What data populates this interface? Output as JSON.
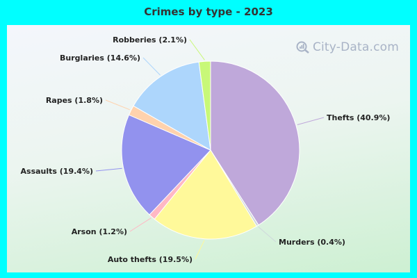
{
  "title": "Crimes by type - 2023",
  "watermark": "City-Data.com",
  "colors": {
    "background": "#00ffff",
    "title": "#333333"
  },
  "chart_data": {
    "type": "pie",
    "title": "Crimes by type - 2023",
    "start": "top, clockwise",
    "slices": [
      {
        "name": "Thefts",
        "value": 40.9,
        "label": "Thefts (40.9%)",
        "color": "#bfa8da"
      },
      {
        "name": "Murders",
        "value": 0.4,
        "label": "Murders (0.4%)",
        "color": "#cfd8dc"
      },
      {
        "name": "Auto thefts",
        "value": 19.5,
        "label": "Auto thefts (19.5%)",
        "color": "#fff99a"
      },
      {
        "name": "Arson",
        "value": 1.2,
        "label": "Arson (1.2%)",
        "color": "#ffb8c4"
      },
      {
        "name": "Assaults",
        "value": 19.4,
        "label": "Assaults (19.4%)",
        "color": "#9292ee"
      },
      {
        "name": "Rapes",
        "value": 1.8,
        "label": "Rapes (1.8%)",
        "color": "#ffd2ad"
      },
      {
        "name": "Burglaries",
        "value": 14.6,
        "label": "Burglaries (14.6%)",
        "color": "#add6fc"
      },
      {
        "name": "Robberies",
        "value": 2.1,
        "label": "Robberies (2.1%)",
        "color": "#c8f878"
      }
    ]
  }
}
